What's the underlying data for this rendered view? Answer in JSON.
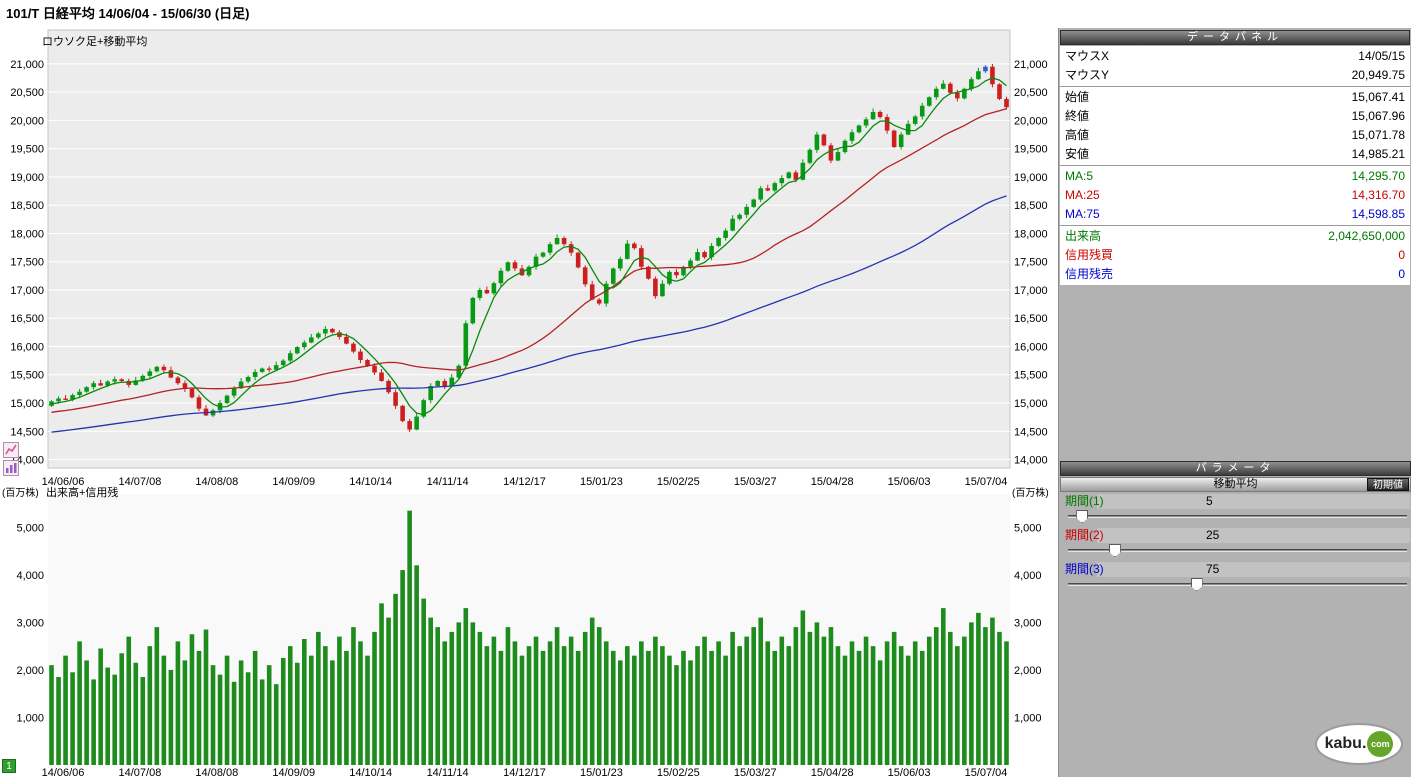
{
  "title_bar": {
    "text": "101/T 日経平均  14/06/04 - 15/06/30 (日足)"
  },
  "price_chart": {
    "label": "ロウソク足+移動平均"
  },
  "volume_chart": {
    "unit_left": "(百万株)",
    "label": "出来高+信用残",
    "unit_right": "(百万株)",
    "page_badge": "1"
  },
  "data_panel": {
    "header": "データパネル",
    "rows": [
      {
        "label": "マウスX",
        "value": "14/05/15"
      },
      {
        "label": "マウスY",
        "value": "20,949.75"
      },
      {
        "label": "始値",
        "value": "15,067.41"
      },
      {
        "label": "終値",
        "value": "15,067.96"
      },
      {
        "label": "高値",
        "value": "15,071.78"
      },
      {
        "label": "安値",
        "value": "14,985.21"
      },
      {
        "label": "MA:5",
        "value": "14,295.70"
      },
      {
        "label": "MA:25",
        "value": "14,316.70"
      },
      {
        "label": "MA:75",
        "value": "14,598.85"
      },
      {
        "label": "出来高",
        "value": "2,042,650,000"
      },
      {
        "label": "信用残買",
        "value": "0"
      },
      {
        "label": "信用残売",
        "value": "0"
      }
    ]
  },
  "parameter_panel": {
    "header": "パラメータ",
    "subheader": "移動平均",
    "reset_button": "初期値",
    "params": [
      {
        "label": "期間(1)",
        "value": 5,
        "max": 200
      },
      {
        "label": "期間(2)",
        "value": 25,
        "max": 200
      },
      {
        "label": "期間(3)",
        "value": 75,
        "max": 200
      }
    ]
  },
  "logo": {
    "main": "kabu.",
    "badge": "com"
  },
  "chart_data": {
    "type": "candlestick+volume",
    "title": "ロウソク足+移動平均",
    "volume_title": "出来高+信用残",
    "x_tick_labels": [
      "14/06/06",
      "14/07/08",
      "14/08/08",
      "14/09/09",
      "14/10/14",
      "14/11/14",
      "14/12/17",
      "15/01/23",
      "15/02/25",
      "15/03/27",
      "15/04/28",
      "15/06/03",
      "15/07/04"
    ],
    "price_y_ticks": [
      14000,
      14500,
      15000,
      15500,
      16000,
      16500,
      17000,
      17500,
      18000,
      18500,
      19000,
      19500,
      20000,
      20500,
      21000
    ],
    "volume_y_ticks": [
      1000,
      2000,
      3000,
      4000,
      5000
    ],
    "price_ylim": [
      13850,
      21600
    ],
    "volume_ylim": [
      0,
      5700
    ],
    "ma_periods": [
      5,
      25,
      75
    ],
    "ma_seed": {
      "start": 13950,
      "end": 14990,
      "days": 75
    },
    "selected_index": 133,
    "closes": [
      15030,
      15080,
      15060,
      15140,
      15200,
      15280,
      15350,
      15310,
      15380,
      15420,
      15390,
      15320,
      15400,
      15480,
      15560,
      15640,
      15580,
      15450,
      15350,
      15250,
      15100,
      14900,
      14780,
      14870,
      15000,
      15130,
      15260,
      15380,
      15460,
      15550,
      15610,
      15590,
      15670,
      15750,
      15880,
      15990,
      16070,
      16160,
      16230,
      16310,
      16250,
      16170,
      16050,
      15910,
      15760,
      15660,
      15540,
      15390,
      15190,
      14950,
      14680,
      14530,
      14760,
      15050,
      15300,
      15390,
      15290,
      15450,
      15660,
      16410,
      16860,
      17000,
      16940,
      17120,
      17340,
      17490,
      17380,
      17260,
      17410,
      17590,
      17660,
      17810,
      17920,
      17810,
      17660,
      17400,
      17100,
      16830,
      16760,
      17110,
      17380,
      17550,
      17820,
      17740,
      17410,
      17200,
      16890,
      17110,
      17320,
      17260,
      17410,
      17520,
      17670,
      17580,
      17780,
      17920,
      18050,
      18260,
      18330,
      18470,
      18600,
      18800,
      18760,
      18890,
      18980,
      19080,
      18950,
      19250,
      19480,
      19750,
      19560,
      19290,
      19440,
      19640,
      19790,
      19910,
      20020,
      20150,
      20060,
      19820,
      19530,
      19750,
      19940,
      20070,
      20260,
      20410,
      20560,
      20650,
      20490,
      20390,
      20560,
      20730,
      20870,
      20950,
      20640,
      20380,
      20235
    ],
    "volumes": [
      2100,
      1850,
      2300,
      1950,
      2600,
      2200,
      1800,
      2450,
      2050,
      1900,
      2350,
      2700,
      2150,
      1850,
      2500,
      2900,
      2300,
      2000,
      2600,
      2200,
      2750,
      2400,
      2850,
      2100,
      1900,
      2300,
      1750,
      2200,
      1950,
      2400,
      1800,
      2100,
      1700,
      2250,
      2500,
      2150,
      2650,
      2300,
      2800,
      2500,
      2200,
      2700,
      2400,
      2900,
      2600,
      2300,
      2800,
      3400,
      3100,
      3600,
      4100,
      5350,
      4200,
      3500,
      3100,
      2900,
      2600,
      2800,
      3000,
      3300,
      3000,
      2800,
      2500,
      2700,
      2400,
      2900,
      2600,
      2300,
      2500,
      2700,
      2400,
      2600,
      2900,
      2500,
      2700,
      2400,
      2800,
      3100,
      2900,
      2600,
      2400,
      2200,
      2500,
      2300,
      2600,
      2400,
      2700,
      2500,
      2300,
      2100,
      2400,
      2200,
      2500,
      2700,
      2400,
      2600,
      2300,
      2800,
      2500,
      2700,
      2900,
      3100,
      2600,
      2400,
      2700,
      2500,
      2900,
      3250,
      2800,
      3000,
      2700,
      2900,
      2500,
      2300,
      2600,
      2400,
      2700,
      2500,
      2200,
      2600,
      2800,
      2500,
      2300,
      2600,
      2400,
      2700,
      2900,
      3300,
      2800,
      2500,
      2700,
      3000,
      3200,
      2900,
      3100,
      2800,
      2600
    ],
    "colors": {
      "up": "#089a16",
      "down": "#cc2020",
      "selected": "#3a5bd0",
      "ma5": "#0a8a0a",
      "ma25": "#b42222",
      "ma75": "#2434b0",
      "volume": "#1d8c1d",
      "grid": "#ffffff",
      "plot_bg": "#ececec",
      "vol_bg": "#f9f9f9"
    }
  }
}
